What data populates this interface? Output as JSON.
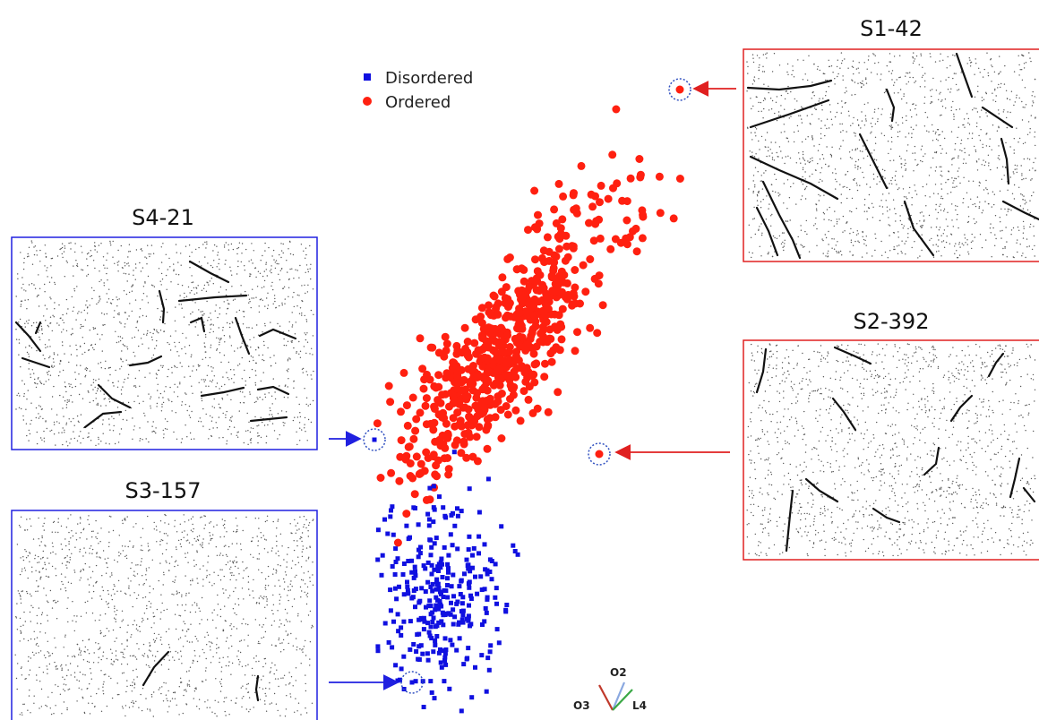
{
  "chart_data": {
    "type": "scatter",
    "title": "",
    "legend": {
      "placement": "top-left",
      "entries": [
        {
          "name": "Disordered",
          "marker": "square",
          "color": "#1010e0"
        },
        {
          "name": "Ordered",
          "marker": "circle",
          "color": "#ff2010"
        }
      ]
    },
    "series": [
      {
        "name": "Disordered",
        "color": "#1010e0",
        "marker": "square"
      },
      {
        "name": "Ordered",
        "color": "#ff2010",
        "marker": "circle"
      }
    ],
    "axes_triad": [
      "O2",
      "O3",
      "L4"
    ],
    "axes_triad_colors": [
      "#8aa8e0",
      "#c0392b",
      "#3aa845"
    ],
    "grid": false,
    "insets": [
      {
        "label": "S1-42",
        "class": "Ordered",
        "border_color": "#e02020"
      },
      {
        "label": "S2-392",
        "class": "Ordered",
        "border_color": "#e02020"
      },
      {
        "label": "S4-21",
        "class": "Disordered",
        "border_color": "#2020e0"
      },
      {
        "label": "S3-157",
        "class": "Disordered",
        "border_color": "#2020e0"
      }
    ]
  }
}
